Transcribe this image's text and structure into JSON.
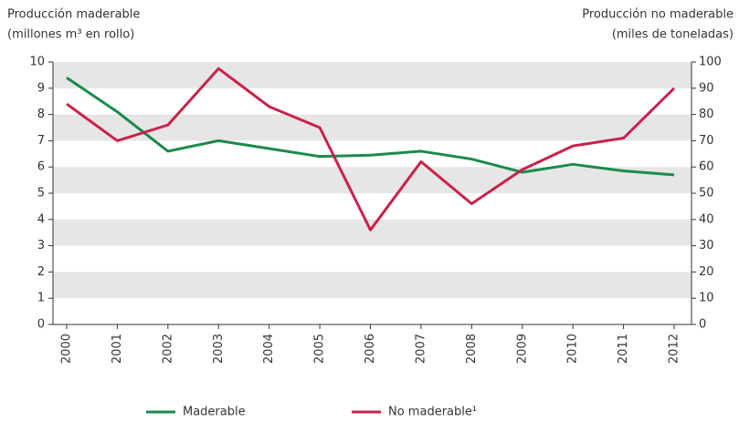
{
  "chart_data": {
    "type": "line",
    "ylabel": [
      "Producción maderable",
      "(millones m³ en rollo)"
    ],
    "y2label": [
      "Producción no maderable",
      "(miles de toneladas)"
    ],
    "categories": [
      "2000",
      "2001",
      "2002",
      "2003",
      "2004",
      "2005",
      "2006",
      "2007",
      "2008",
      "2009",
      "2010",
      "2011",
      "2012"
    ],
    "series": [
      {
        "name": "Maderable",
        "color": "#1b8a4c",
        "values": [
          9.4,
          8.1,
          6.6,
          7.0,
          6.7,
          6.4,
          6.45,
          6.6,
          6.3,
          5.8,
          6.1,
          5.85,
          5.7
        ]
      },
      {
        "name": "No maderable¹",
        "color": "#c8234a",
        "axis": "y2",
        "values": [
          84,
          70,
          76,
          97.5,
          83,
          75,
          36,
          62,
          46,
          59,
          68,
          71,
          90
        ]
      }
    ],
    "ylim": [
      0,
      10
    ],
    "yticks": [
      0,
      1,
      2,
      3,
      4,
      5,
      6,
      7,
      8,
      9,
      10
    ],
    "y2lim": [
      0,
      100
    ],
    "y2ticks": [
      0,
      10,
      20,
      30,
      40,
      50,
      60,
      70,
      80,
      90,
      100
    ],
    "grid": "bands",
    "band_color": "#e6e6e6",
    "legend": "bottom"
  }
}
